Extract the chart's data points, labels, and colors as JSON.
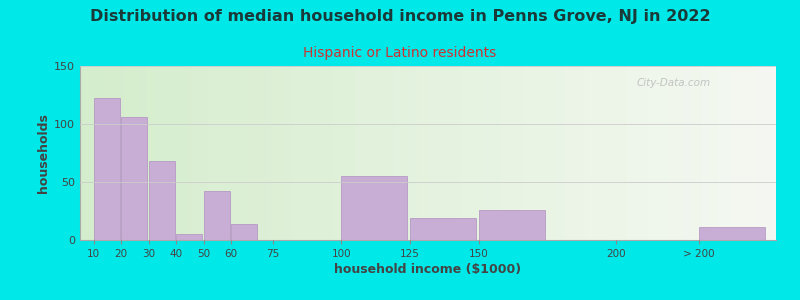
{
  "title": "Distribution of median household income in Penns Grove, NJ in 2022",
  "subtitle": "Hispanic or Latino residents",
  "xlabel": "household income ($1000)",
  "ylabel": "households",
  "title_fontsize": 11.5,
  "subtitle_fontsize": 10,
  "title_color": "#1a3a3a",
  "subtitle_color": "#cc3333",
  "background_outer": "#00e8e8",
  "bar_color": "#c8aed4",
  "bar_edge_color": "#b090c0",
  "ylim": [
    0,
    150
  ],
  "yticks": [
    0,
    50,
    100,
    150
  ],
  "tick_labels": [
    "10",
    "20",
    "30",
    "40",
    "50",
    "60",
    "75",
    "100",
    "125",
    "150",
    "200",
    "> 200"
  ],
  "values": [
    122,
    106,
    68,
    5,
    42,
    14,
    0,
    55,
    19,
    26,
    0,
    11
  ],
  "watermark": "City-Data.com",
  "bar_starts": [
    10,
    20,
    30,
    40,
    50,
    60,
    75,
    100,
    125,
    150,
    200,
    230
  ],
  "bar_widths": [
    9.5,
    9.5,
    9.5,
    9.5,
    9.5,
    9.5,
    14,
    24,
    24,
    24,
    24,
    24
  ],
  "tick_positions": [
    10,
    20,
    30,
    40,
    50,
    60,
    75,
    100,
    125,
    150,
    200,
    230
  ],
  "xlim": [
    5,
    258
  ]
}
